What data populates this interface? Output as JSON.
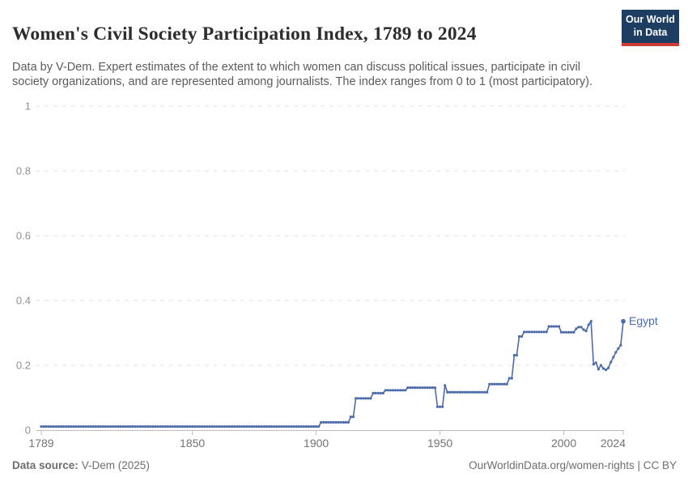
{
  "header": {
    "title": "Women's Civil Society Participation Index, 1789 to 2024",
    "subtitle": "Data by V-Dem. Expert estimates of the extent to which women can discuss political issues, participate in civil society organizations, and are represented among journalists. The index ranges from 0 to 1 (most participatory).",
    "logo": {
      "line1": "Our World",
      "line2": "in Data",
      "bg_color": "#1d3d63",
      "accent_color": "#cc3b36"
    }
  },
  "chart_data": {
    "type": "line",
    "title": "Women's Civil Society Participation Index, 1789 to 2024",
    "xlabel": "",
    "ylabel": "",
    "xlim": [
      1789,
      2024
    ],
    "ylim": [
      0,
      1
    ],
    "x_ticks": [
      1789,
      1850,
      1900,
      1950,
      2000,
      2024
    ],
    "y_ticks": [
      0,
      0.2,
      0.4,
      0.6,
      0.8,
      1
    ],
    "grid": "horizontal-dashed",
    "legend_position": "end-of-line-label",
    "line_color": "#4c6ba9",
    "series": [
      {
        "name": "Egypt",
        "label_color": "#4c6ba9",
        "note": "step_runs are [startYear, endYear, indexValue]; value held constant across the run, one data point per year",
        "step_runs": [
          [
            1789,
            1901,
            0.011
          ],
          [
            1902,
            1913,
            0.024
          ],
          [
            1914,
            1915,
            0.041
          ],
          [
            1916,
            1922,
            0.098
          ],
          [
            1923,
            1927,
            0.114
          ],
          [
            1928,
            1936,
            0.123
          ],
          [
            1937,
            1948,
            0.131
          ],
          [
            1949,
            1951,
            0.072
          ],
          [
            1952,
            1952,
            0.138
          ],
          [
            1953,
            1969,
            0.117
          ],
          [
            1970,
            1977,
            0.142
          ],
          [
            1978,
            1979,
            0.16
          ],
          [
            1980,
            1981,
            0.231
          ],
          [
            1982,
            1983,
            0.289
          ],
          [
            1984,
            1993,
            0.303
          ],
          [
            1994,
            1998,
            0.32
          ],
          [
            1999,
            2004,
            0.302
          ],
          [
            2005,
            2005,
            0.313
          ],
          [
            2006,
            2007,
            0.318
          ],
          [
            2008,
            2008,
            0.31
          ],
          [
            2009,
            2009,
            0.306
          ],
          [
            2010,
            2010,
            0.325
          ],
          [
            2011,
            2011,
            0.336
          ],
          [
            2012,
            2012,
            0.203
          ],
          [
            2013,
            2013,
            0.208
          ],
          [
            2014,
            2014,
            0.188
          ],
          [
            2015,
            2015,
            0.2
          ],
          [
            2016,
            2016,
            0.19
          ],
          [
            2017,
            2017,
            0.186
          ],
          [
            2018,
            2018,
            0.192
          ],
          [
            2019,
            2019,
            0.21
          ],
          [
            2020,
            2020,
            0.225
          ],
          [
            2021,
            2021,
            0.24
          ],
          [
            2022,
            2022,
            0.252
          ],
          [
            2023,
            2023,
            0.262
          ],
          [
            2024,
            2024,
            0.336
          ]
        ]
      }
    ]
  },
  "footer": {
    "source_label": "Data source:",
    "source_value": "V-Dem (2025)",
    "citation": "OurWorldinData.org/women-rights | CC BY"
  }
}
